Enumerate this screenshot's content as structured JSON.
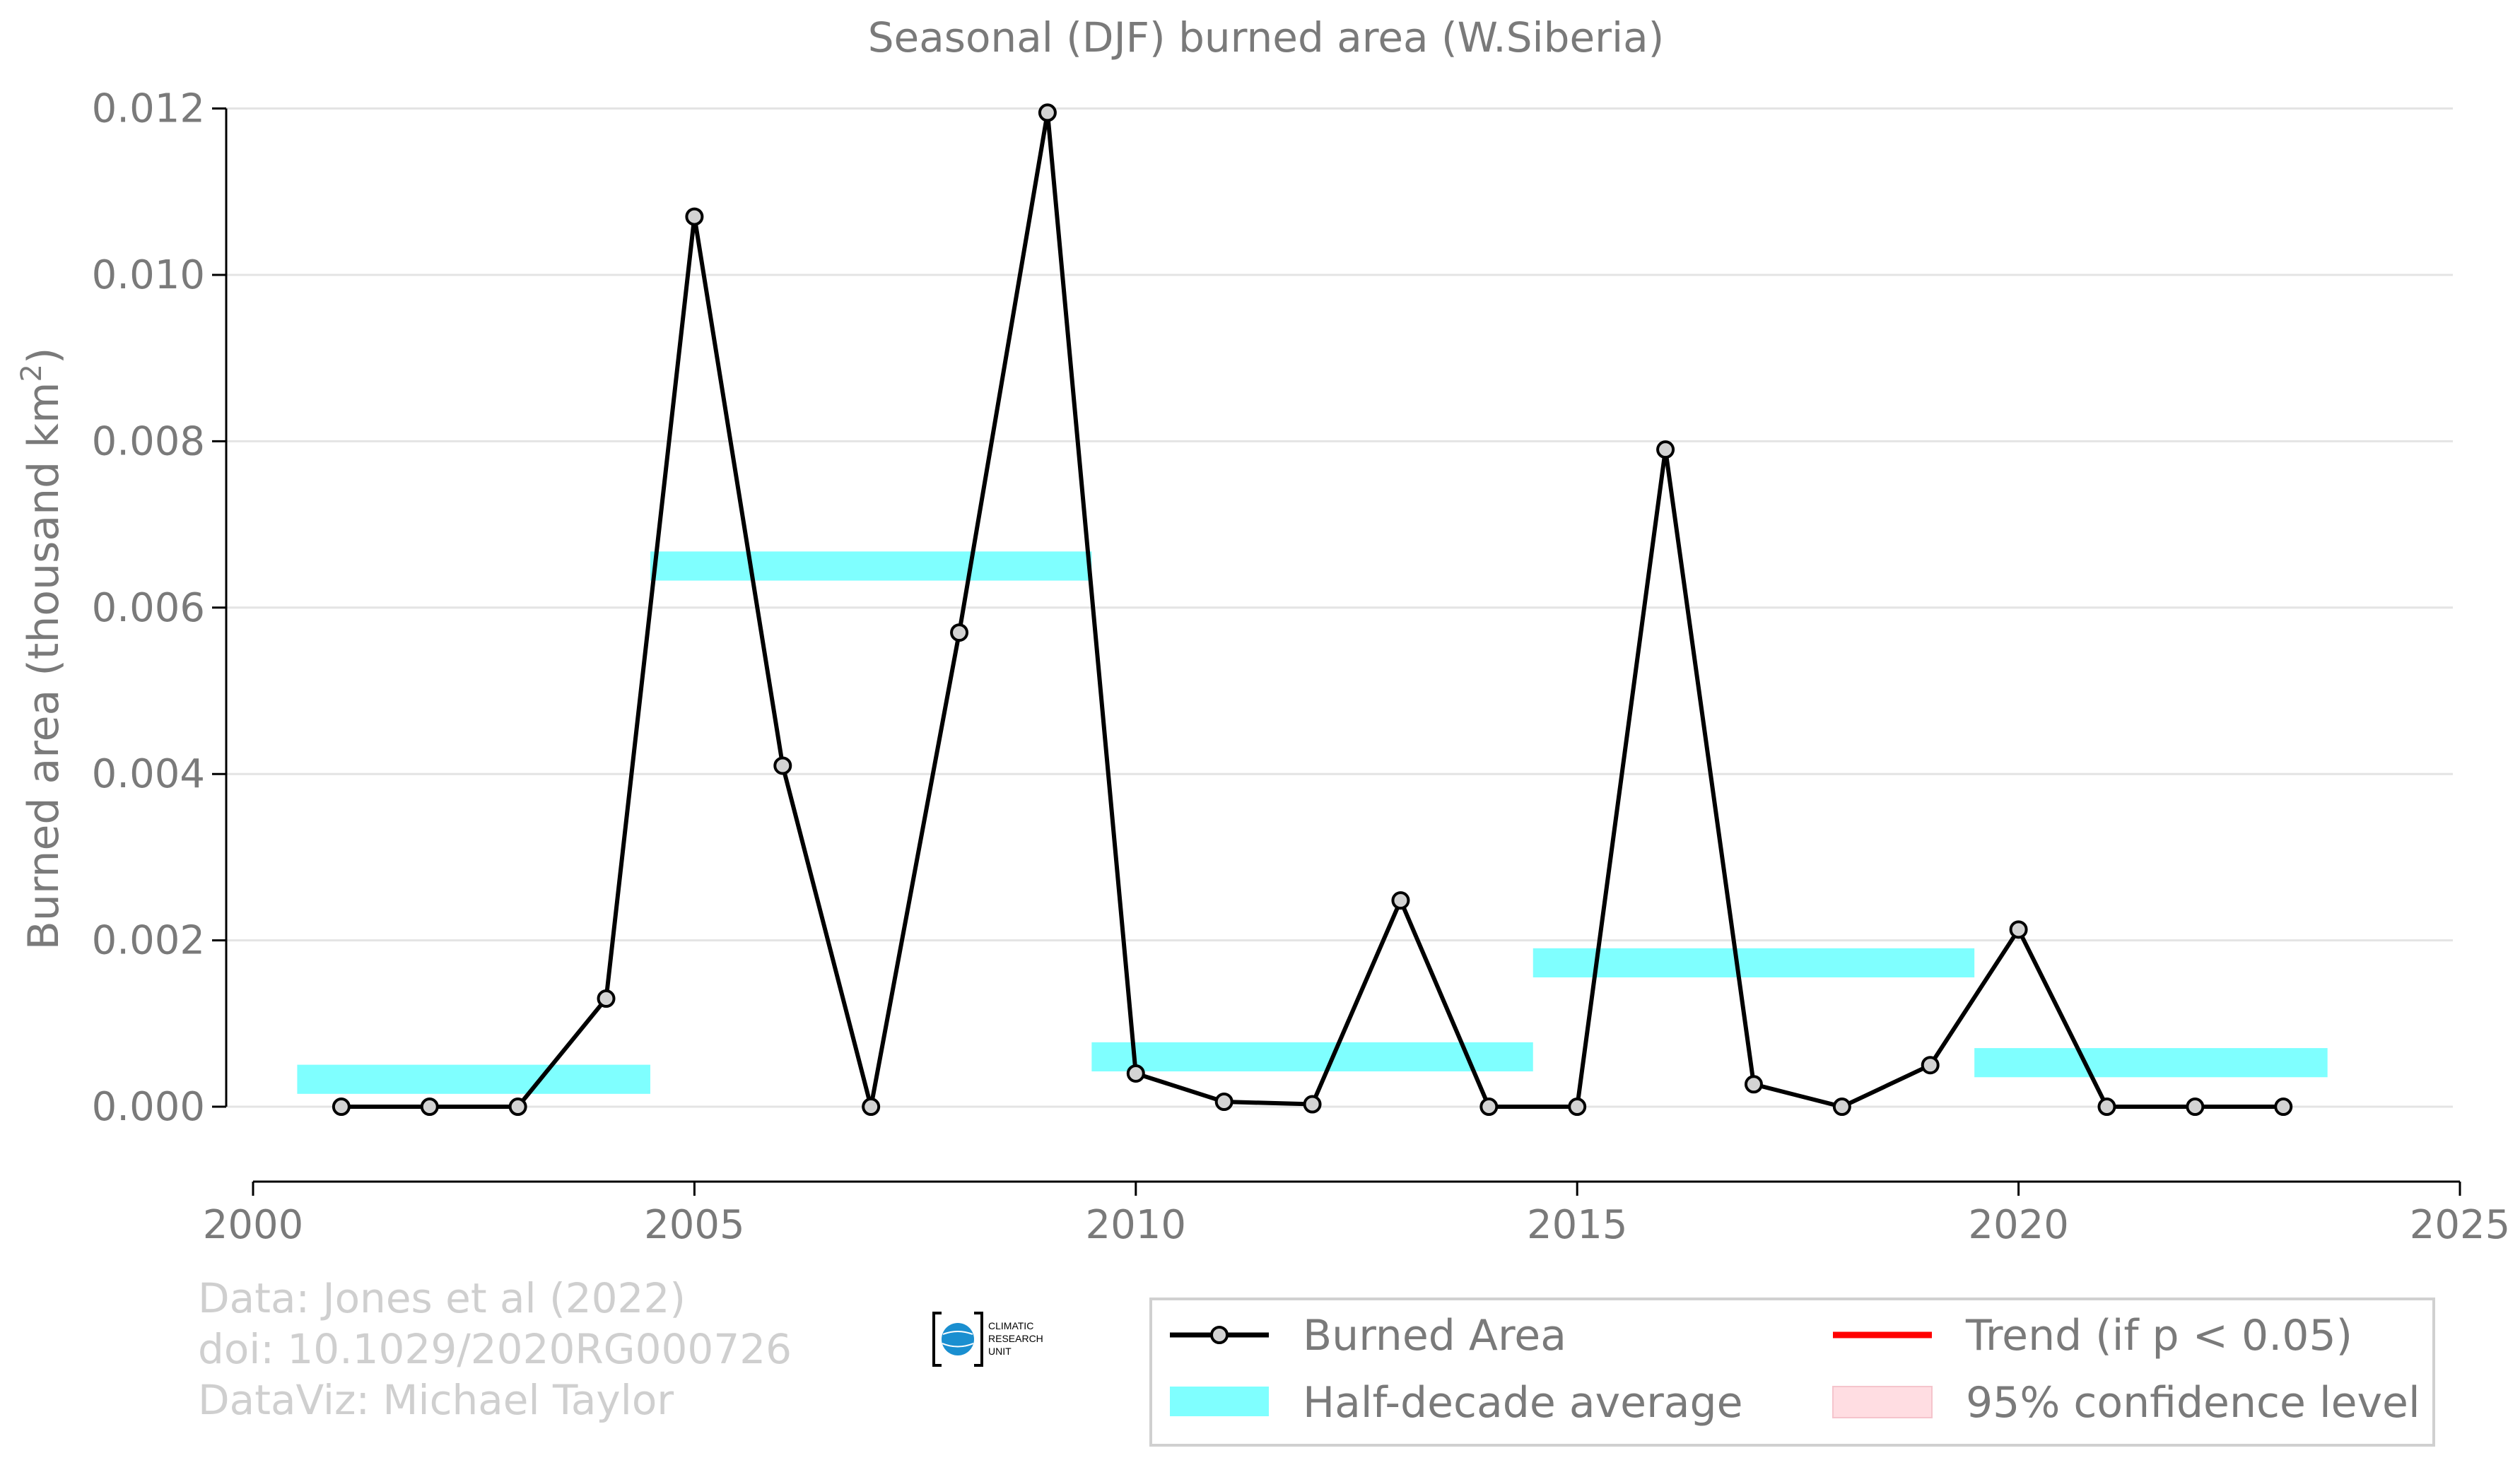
{
  "chart_data": {
    "type": "line",
    "title": "Seasonal (DJF) burned area (W.Siberia)",
    "ylabel": "Burned area (thousand km",
    "ylabel_superscript": "2",
    "ylabel_suffix": ")",
    "xlim": [
      2000,
      2025
    ],
    "ylim": [
      -0.0009,
      0.0122
    ],
    "x_ticks": [
      2000,
      2005,
      2010,
      2015,
      2020,
      2025
    ],
    "x_tick_labels": [
      "2000",
      "2005",
      "2010",
      "2015",
      "2020",
      "2025"
    ],
    "y_ticks": [
      0.0,
      0.002,
      0.004,
      0.006,
      0.008,
      0.01,
      0.012
    ],
    "y_tick_labels": [
      "0.000",
      "0.002",
      "0.004",
      "0.006",
      "0.008",
      "0.010",
      "0.012"
    ],
    "grid": "horizontal",
    "series": [
      {
        "name": "Burned Area",
        "color": "#000000",
        "marker_fill": "#d3d3d3",
        "x": [
          2001,
          2002,
          2003,
          2004,
          2005,
          2006,
          2007,
          2008,
          2009,
          2010,
          2011,
          2012,
          2013,
          2014,
          2015,
          2016,
          2017,
          2018,
          2019,
          2020,
          2021,
          2022,
          2023
        ],
        "values": [
          0.0,
          0.0,
          0.0,
          0.0013,
          0.0107,
          0.0041,
          0.0,
          0.0057,
          0.01195,
          0.0004,
          6e-05,
          3e-05,
          0.00248,
          0.0,
          0.0,
          0.0079,
          0.00027,
          0.0,
          0.0005,
          0.00213,
          0.0,
          0.0,
          0.0
        ]
      }
    ],
    "half_decade_averages": {
      "name": "Half-decade average",
      "color": "#7fffff",
      "segments": [
        {
          "x_start": 2000.5,
          "x_end": 2004.5,
          "value": 0.00033
        },
        {
          "x_start": 2004.5,
          "x_end": 2009.5,
          "value": 0.0065
        },
        {
          "x_start": 2009.5,
          "x_end": 2014.5,
          "value": 0.0006
        },
        {
          "x_start": 2014.5,
          "x_end": 2019.5,
          "value": 0.00173
        },
        {
          "x_start": 2019.5,
          "x_end": 2023.5,
          "value": 0.00053
        }
      ]
    },
    "legend": {
      "placement": "bottom-right",
      "entries": [
        {
          "label": "Burned Area",
          "kind": "line-marker",
          "color": "#000000"
        },
        {
          "label": "Trend (if p < 0.05)",
          "kind": "line",
          "color": "#ff0000"
        },
        {
          "label": "Half-decade average",
          "kind": "band",
          "color": "#7fffff"
        },
        {
          "label": "95% confidence level",
          "kind": "box",
          "color": "#ffdde2"
        }
      ]
    }
  },
  "credits": {
    "line1": "Data: Jones et al (2022)",
    "line2": "doi: 10.1029/2020RG000726",
    "line3": "DataViz: Michael Taylor"
  },
  "logo": {
    "text_line1": "CLIMATIC",
    "text_line2": "RESEARCH",
    "text_line3": "UNIT",
    "color": "#1a8fd0"
  }
}
